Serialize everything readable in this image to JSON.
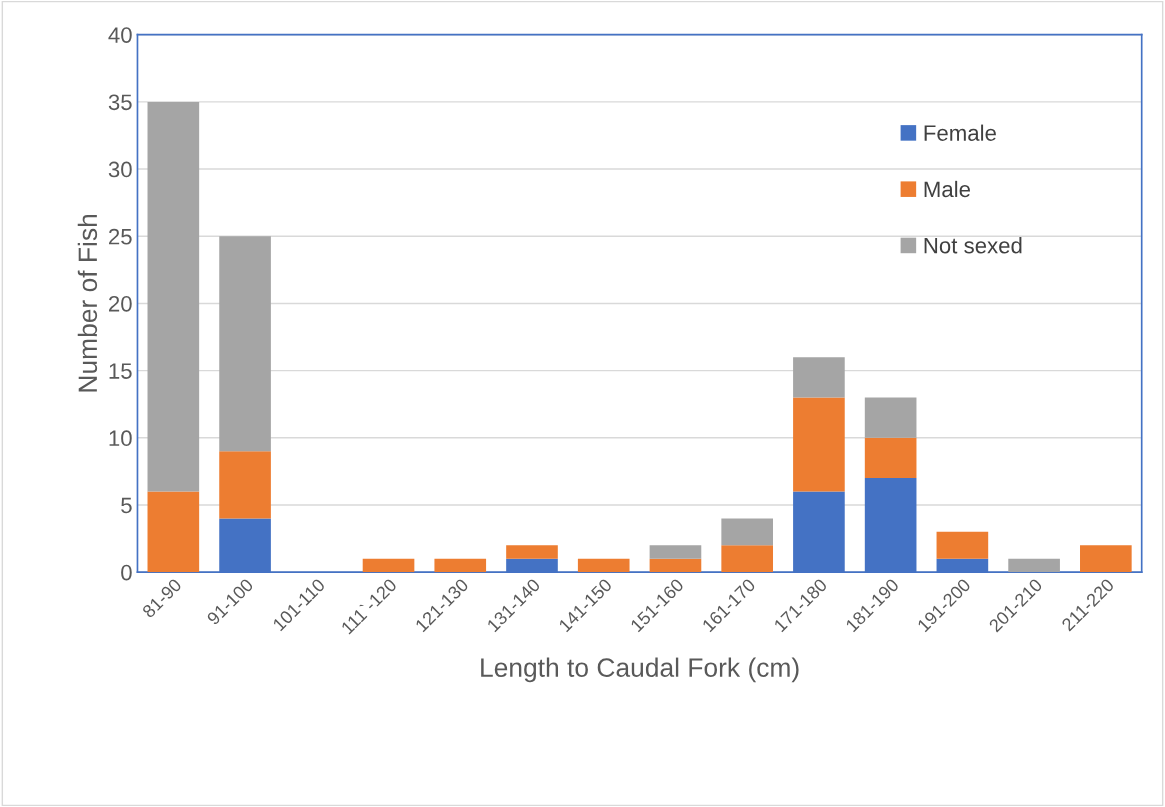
{
  "chart_data": {
    "type": "bar",
    "stacked": true,
    "xlabel": "Length to Caudal Fork (cm)",
    "ylabel": "Number of Fish",
    "categories": [
      "81-90",
      "91-100",
      "101-110",
      "111`-120",
      "121-130",
      "131-140",
      "141-150",
      "151-160",
      "161-170",
      "171-180",
      "181-190",
      "191-200",
      "201-210",
      "211-220"
    ],
    "series": [
      {
        "name": "Female",
        "color": "#4472c4",
        "values": [
          0,
          4,
          0,
          0,
          0,
          1,
          0,
          0,
          0,
          6,
          7,
          1,
          0,
          0
        ]
      },
      {
        "name": "Male",
        "color": "#ed7d31",
        "values": [
          6,
          5,
          0,
          1,
          1,
          1,
          1,
          1,
          2,
          7,
          3,
          2,
          0,
          2
        ]
      },
      {
        "name": "Not sexed",
        "color": "#a5a5a5",
        "values": [
          29,
          16,
          0,
          0,
          0,
          0,
          0,
          1,
          2,
          3,
          3,
          0,
          1,
          0
        ]
      }
    ],
    "ylim": [
      0,
      40
    ],
    "yticks": [
      0,
      5,
      10,
      15,
      20,
      25,
      30,
      35,
      40
    ],
    "grid": "y",
    "legend": "top right"
  }
}
